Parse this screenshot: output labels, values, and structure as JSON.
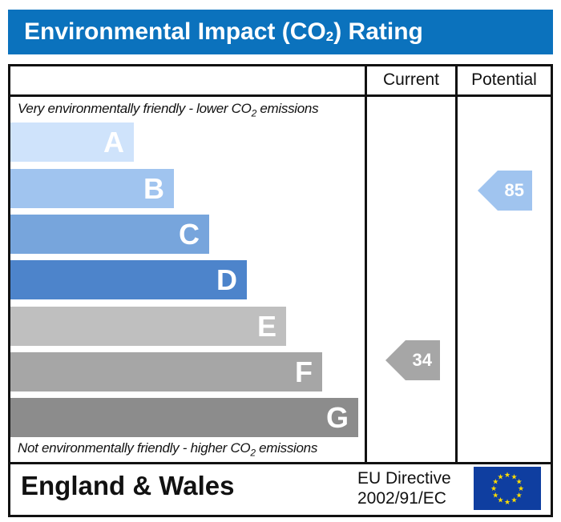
{
  "title": {
    "main": "Environmental Impact (CO",
    "sub": "2",
    "end": ") Rating"
  },
  "columns": {
    "current": "Current",
    "potential": "Potential"
  },
  "top_note": {
    "pre": "Very environmentally friendly - lower CO",
    "sub": "2",
    "post": " emissions"
  },
  "bottom_note": {
    "pre": "Not environmentally friendly - higher CO",
    "sub": "2",
    "post": " emissions"
  },
  "bands": [
    {
      "letter": "A",
      "color": "#cfe3fb"
    },
    {
      "letter": "B",
      "color": "#a0c4ef"
    },
    {
      "letter": "C",
      "color": "#77a5dc"
    },
    {
      "letter": "D",
      "color": "#4d84cb"
    },
    {
      "letter": "E",
      "color": "#bfbfbf"
    },
    {
      "letter": "F",
      "color": "#a6a6a6"
    },
    {
      "letter": "G",
      "color": "#8c8c8c"
    }
  ],
  "ratings": {
    "current": {
      "value": "34",
      "band": "F",
      "color": "#a6a6a6"
    },
    "potential": {
      "value": "85",
      "band": "B",
      "color": "#a0c4ef"
    }
  },
  "footer": {
    "region": "England & Wales",
    "directive_line1": "EU Directive",
    "directive_line2": "2002/91/EC"
  }
}
